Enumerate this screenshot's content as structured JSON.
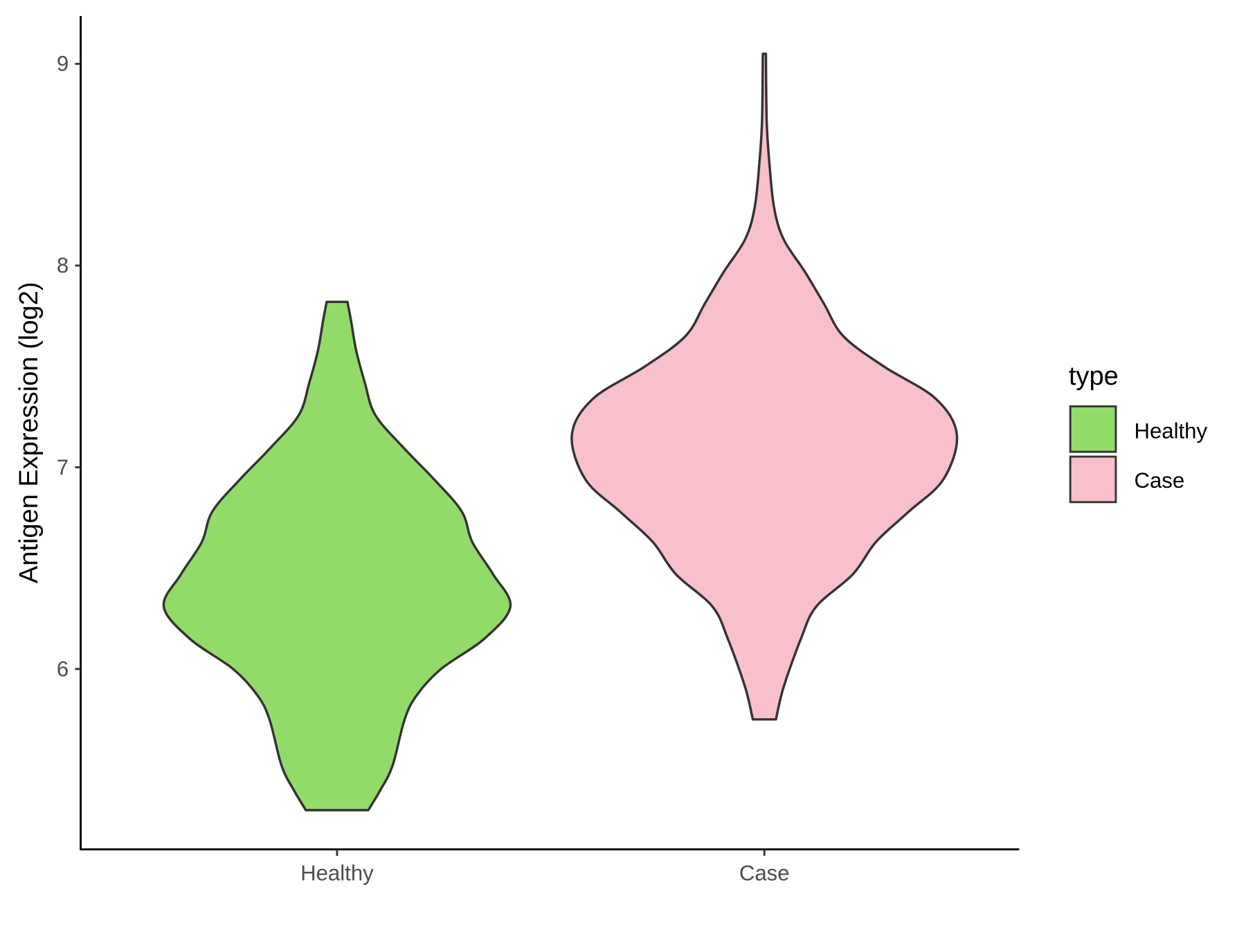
{
  "chart_data": {
    "type": "violin",
    "title": "",
    "xlabel": "",
    "ylabel": "Antigen Expression (log2)",
    "categories": [
      "Healthy",
      "Case"
    ],
    "yticks": [
      6,
      7,
      8,
      9
    ],
    "ylim": [
      5.1,
      9.23
    ],
    "grid": false,
    "legend": {
      "title": "type",
      "placement": "right",
      "entries": [
        "Healthy",
        "Case"
      ]
    },
    "series": [
      {
        "name": "Healthy",
        "color": "#93DB69",
        "range": [
          5.3,
          7.82
        ],
        "profile": [
          [
            5.3,
            0.18
          ],
          [
            5.4,
            0.25
          ],
          [
            5.52,
            0.32
          ],
          [
            5.75,
            0.39
          ],
          [
            5.87,
            0.46
          ],
          [
            6.0,
            0.6
          ],
          [
            6.15,
            0.85
          ],
          [
            6.31,
            1.0
          ],
          [
            6.47,
            0.9
          ],
          [
            6.63,
            0.78
          ],
          [
            6.78,
            0.72
          ],
          [
            6.94,
            0.56
          ],
          [
            7.1,
            0.38
          ],
          [
            7.26,
            0.22
          ],
          [
            7.42,
            0.16
          ],
          [
            7.58,
            0.11
          ],
          [
            7.73,
            0.08
          ],
          [
            7.82,
            0.06
          ]
        ]
      },
      {
        "name": "Case",
        "color": "#F8C0CB",
        "range": [
          5.75,
          9.05
        ],
        "profile": [
          [
            5.75,
            0.06
          ],
          [
            5.91,
            0.1
          ],
          [
            6.15,
            0.19
          ],
          [
            6.31,
            0.27
          ],
          [
            6.47,
            0.46
          ],
          [
            6.63,
            0.58
          ],
          [
            6.78,
            0.75
          ],
          [
            6.94,
            0.93
          ],
          [
            7.16,
            1.0
          ],
          [
            7.34,
            0.89
          ],
          [
            7.5,
            0.62
          ],
          [
            7.65,
            0.41
          ],
          [
            7.81,
            0.31
          ],
          [
            7.97,
            0.21
          ],
          [
            8.13,
            0.1
          ],
          [
            8.29,
            0.05
          ],
          [
            8.52,
            0.025
          ],
          [
            8.72,
            0.012
          ],
          [
            9.05,
            0.008
          ]
        ]
      }
    ]
  }
}
